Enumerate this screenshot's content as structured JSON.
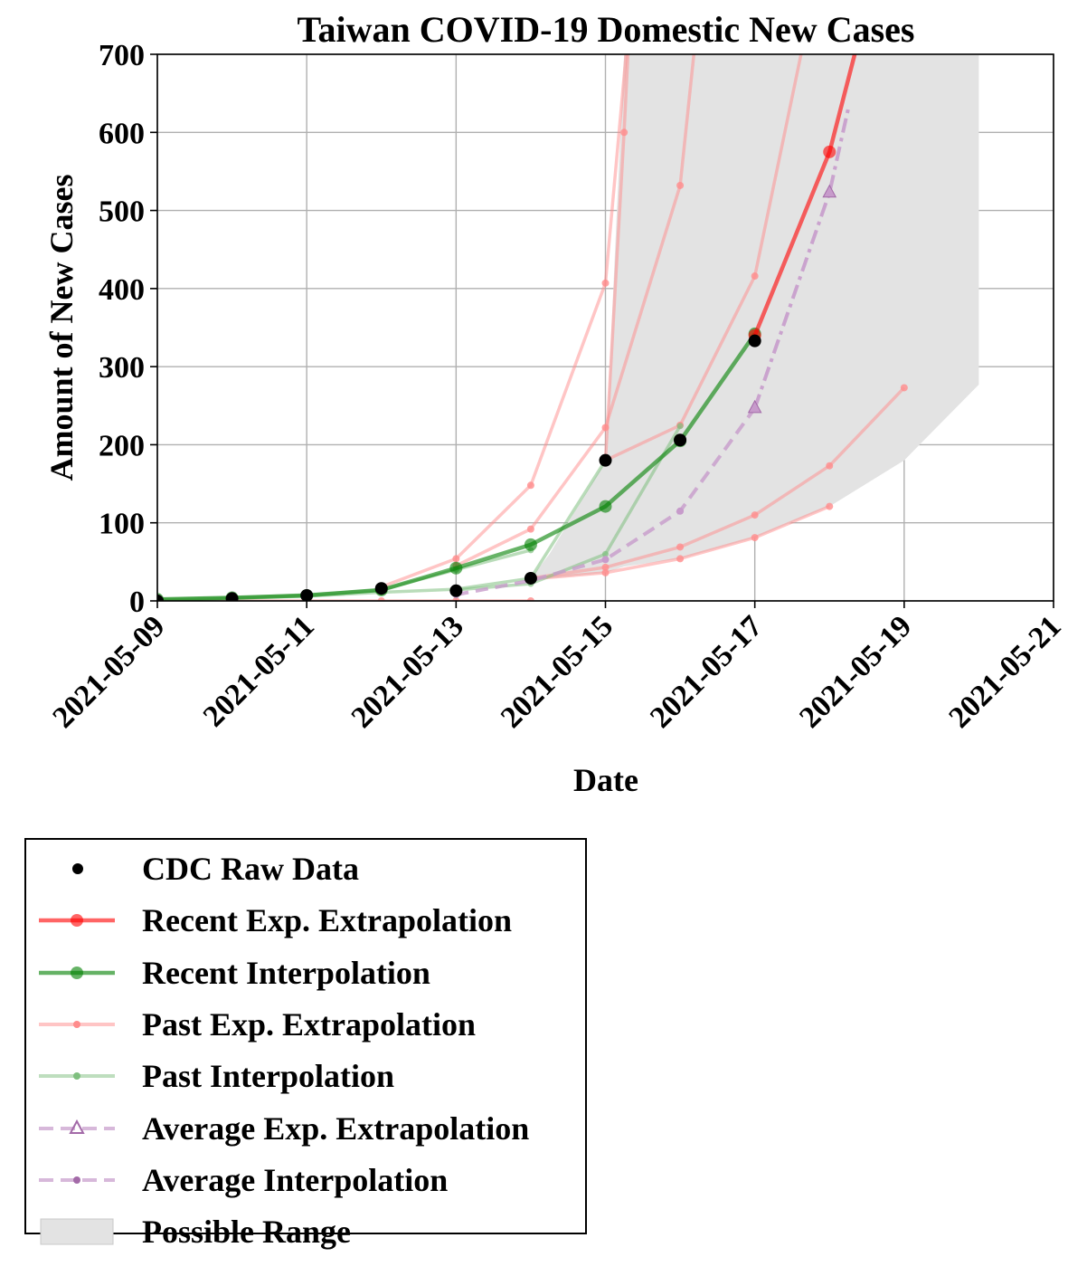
{
  "chart_data": {
    "type": "line",
    "title": "Taiwan COVID-19 Domestic New Cases",
    "xlabel": "Date",
    "ylabel": "Amount of New Cases",
    "x_ticks": [
      "2021-05-09",
      "2021-05-11",
      "2021-05-13",
      "2021-05-15",
      "2021-05-17",
      "2021-05-19",
      "2021-05-21"
    ],
    "y_ticks": [
      0,
      100,
      200,
      300,
      400,
      500,
      600,
      700
    ],
    "xlim": [
      "2021-05-09",
      "2021-05-21"
    ],
    "ylim": [
      0,
      700
    ],
    "grid": true,
    "legend_position": "below-left",
    "colors": {
      "raw": "#000000",
      "recent_extrapolation": "#ff0000",
      "recent_interpolation": "#008000",
      "past_extrapolation": "#ff8c8c",
      "past_interpolation": "#7fbf7f",
      "average": "#c79bcb",
      "range": "#e3e3e3"
    },
    "series": [
      {
        "name": "CDC Raw Data",
        "kind": "scatter",
        "x": [
          "2021-05-09",
          "2021-05-10",
          "2021-05-11",
          "2021-05-12",
          "2021-05-13",
          "2021-05-14",
          "2021-05-15",
          "2021-05-16",
          "2021-05-17"
        ],
        "y": [
          0,
          3,
          7,
          16,
          13,
          29,
          180,
          206,
          333
        ]
      },
      {
        "name": "Recent Exp. Extrapolation",
        "kind": "extrap-recent",
        "x": [
          "2021-05-17",
          "2021-05-18",
          "2021-05-18T12:00"
        ],
        "y": [
          340,
          575,
          760
        ]
      },
      {
        "name": "Recent Interpolation",
        "kind": "interp-recent",
        "x": [
          "2021-05-09",
          "2021-05-10",
          "2021-05-11",
          "2021-05-12",
          "2021-05-13",
          "2021-05-14",
          "2021-05-15",
          "2021-05-16",
          "2021-05-17"
        ],
        "y": [
          2,
          4,
          7,
          14,
          42,
          72,
          121,
          205,
          342
        ]
      },
      {
        "name": "Past Exp. Extrapolation",
        "kind": "extrap-past",
        "lines": [
          {
            "x": [
              "2021-05-12",
              "2021-05-13",
              "2021-05-14",
              "2021-05-15",
              "2021-05-15T08:00"
            ],
            "y": [
              18,
              54,
              148,
              407,
              760
            ]
          },
          {
            "x": [
              "2021-05-13",
              "2021-05-14",
              "2021-05-15",
              "2021-05-16",
              "2021-05-16T06:00"
            ],
            "y": [
              45,
              92,
              222,
              532,
              760
            ]
          },
          {
            "x": [
              "2021-05-15",
              "2021-05-16",
              "2021-05-17",
              "2021-05-17T18:00"
            ],
            "y": [
              180,
              225,
              416,
              760
            ]
          },
          {
            "x": [
              "2021-05-14",
              "2021-05-15",
              "2021-05-16",
              "2021-05-17",
              "2021-05-18",
              "2021-05-19"
            ],
            "y": [
              29,
              43,
              69,
              110,
              173,
              273
            ]
          },
          {
            "x": [
              "2021-05-14",
              "2021-05-15",
              "2021-05-16",
              "2021-05-17",
              "2021-05-18"
            ],
            "y": [
              28,
              36,
              54,
              81,
              121
            ]
          },
          {
            "x": [
              "2021-05-09",
              "2021-05-10",
              "2021-05-11",
              "2021-05-12",
              "2021-05-13",
              "2021-05-14"
            ],
            "y": [
              0,
              0,
              0,
              0,
              0,
              0
            ]
          },
          {
            "x": [
              "2021-05-15",
              "2021-05-15T06:00",
              "2021-05-15T08:00"
            ],
            "y": [
              180,
              600,
              760
            ]
          }
        ]
      },
      {
        "name": "Past Interpolation",
        "kind": "interp-past",
        "lines": [
          {
            "x": [
              "2021-05-09",
              "2021-05-10",
              "2021-05-11",
              "2021-05-12",
              "2021-05-13",
              "2021-05-14",
              "2021-05-15"
            ],
            "y": [
              1,
              3,
              6,
              11,
              15,
              29,
              180
            ]
          },
          {
            "x": [
              "2021-05-13",
              "2021-05-14",
              "2021-05-15",
              "2021-05-16"
            ],
            "y": [
              14,
              22,
              60,
              224
            ]
          },
          {
            "x": [
              "2021-05-09",
              "2021-05-10",
              "2021-05-11",
              "2021-05-12",
              "2021-05-13",
              "2021-05-14"
            ],
            "y": [
              2,
              4,
              8,
              14,
              40,
              65
            ]
          }
        ]
      },
      {
        "name": "Average Exp. Extrapolation",
        "kind": "average-extrap",
        "x": [
          "2021-05-17",
          "2021-05-18",
          "2021-05-18T06:00"
        ],
        "y": [
          247,
          523,
          630
        ]
      },
      {
        "name": "Average Interpolation",
        "kind": "average-interp",
        "x": [
          "2021-05-13",
          "2021-05-14",
          "2021-05-15",
          "2021-05-16",
          "2021-05-17"
        ],
        "y": [
          8,
          26,
          53,
          115,
          247
        ]
      },
      {
        "name": "Possible Range",
        "kind": "range",
        "x": [
          "2021-05-14",
          "2021-05-14T06:00",
          "2021-05-15",
          "2021-05-15T06:00",
          "2021-05-16",
          "2021-05-17",
          "2021-05-18",
          "2021-05-19",
          "2021-05-20"
        ],
        "upper": [
          29,
          60,
          180,
          700,
          700,
          700,
          700,
          700,
          700
        ],
        "lower": [
          29,
          29,
          36,
          44,
          54,
          81,
          121,
          180,
          277
        ]
      }
    ]
  }
}
